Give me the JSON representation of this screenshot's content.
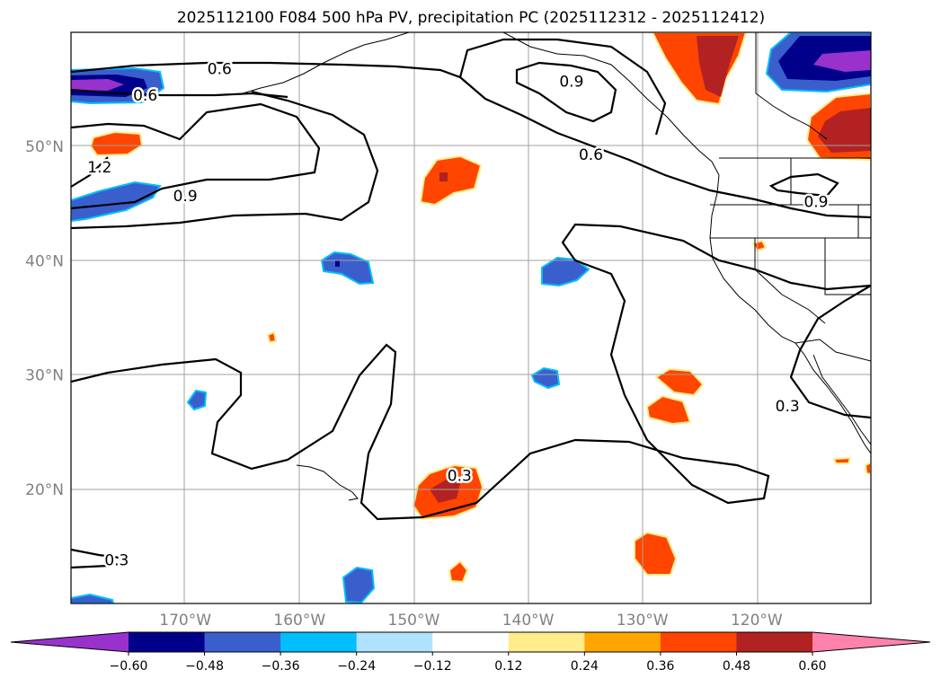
{
  "chart_data": {
    "type": "map",
    "title": "2025112100 F084 500 hPa PV, precipitation PC (2025112312 - 2025112412)",
    "map": {
      "lon_range": [
        -180,
        -110
      ],
      "lat_range": [
        10,
        60
      ],
      "gridlines": true,
      "x_tick_labels": [
        {
          "lon": -170,
          "label": "170°W"
        },
        {
          "lon": -160,
          "label": "160°W"
        },
        {
          "lon": -150,
          "label": "150°W"
        },
        {
          "lon": -140,
          "label": "140°W"
        },
        {
          "lon": -130,
          "label": "130°W"
        },
        {
          "lon": -120,
          "label": "120°W"
        }
      ],
      "y_tick_labels": [
        {
          "lat": 20,
          "label": "20°N"
        },
        {
          "lat": 30,
          "label": "30°N"
        },
        {
          "lat": 40,
          "label": "40°N"
        },
        {
          "lat": 50,
          "label": "50°N"
        }
      ]
    },
    "pv_contour_labels": [
      {
        "text": "0.6",
        "lon": -167,
        "lat": 56.8
      },
      {
        "text": "0.6",
        "lon": -173.5,
        "lat": 54.5
      },
      {
        "text": "0.9",
        "lon": -136.2,
        "lat": 55.7
      },
      {
        "text": "0.6",
        "lon": -134.5,
        "lat": 49.3
      },
      {
        "text": "1.2",
        "lon": -177.5,
        "lat": 48.2
      },
      {
        "text": "0.9",
        "lon": -170,
        "lat": 45.7
      },
      {
        "text": "0.9",
        "lon": -114.8,
        "lat": 45.2
      },
      {
        "text": "0.3",
        "lon": -146,
        "lat": 21.2
      },
      {
        "text": "0.3",
        "lon": -117.3,
        "lat": 27.3
      },
      {
        "text": "0.3",
        "lon": -176,
        "lat": 13.8
      }
    ],
    "precip_pc_regions": [
      {
        "name": "negative-north-pacific-west",
        "lon": -173.5,
        "lat": 55.5,
        "value": -0.6
      },
      {
        "name": "negative-west-midlat",
        "lon": -175,
        "lat": 45,
        "value": -0.36
      },
      {
        "name": "positive-west-midlat",
        "lon": -177.5,
        "lat": 50.1,
        "value": 0.36
      },
      {
        "name": "positive-gulf-alaska",
        "lon": -125,
        "lat": 57,
        "value": 0.48
      },
      {
        "name": "negative-canada-north",
        "lon": -115,
        "lat": 56,
        "value": -0.6
      },
      {
        "name": "positive-canada-south",
        "lon": -113,
        "lat": 51,
        "value": 0.48
      },
      {
        "name": "positive-central-north",
        "lon": -147.5,
        "lat": 47,
        "value": 0.36
      },
      {
        "name": "negative-central",
        "lon": -156.5,
        "lat": 39.5,
        "value": -0.36
      },
      {
        "name": "negative-east-central",
        "lon": -138.5,
        "lat": 39,
        "value": -0.36
      },
      {
        "name": "positive-subtropical",
        "lon": -148,
        "lat": 20,
        "value": 0.48
      },
      {
        "name": "positive-east-subtropical-1",
        "lon": -126.5,
        "lat": 29.5,
        "value": 0.36
      },
      {
        "name": "positive-east-subtropical-2",
        "lon": -128.7,
        "lat": 27.3,
        "value": 0.36
      },
      {
        "name": "negative-west-subtropical",
        "lon": -169,
        "lat": 28,
        "value": -0.36
      },
      {
        "name": "negative-east-subtropical",
        "lon": -138.5,
        "lat": 29.8,
        "value": -0.24
      },
      {
        "name": "negative-south-central",
        "lon": -155.5,
        "lat": 11.5,
        "value": -0.36
      },
      {
        "name": "positive-south-central",
        "lon": -146,
        "lat": 12.7,
        "value": 0.36
      },
      {
        "name": "positive-southeast",
        "lon": -129,
        "lat": 14.5,
        "value": 0.36
      },
      {
        "name": "positive-small-west",
        "lon": -162.1,
        "lat": 33.2,
        "value": 0.36
      },
      {
        "name": "positive-small-california",
        "lon": -120,
        "lat": 41.3,
        "value": 0.36
      }
    ],
    "colorbar": {
      "extend": "both",
      "colors": [
        "#9932CC",
        "#00008B",
        "#3A5FCD",
        "#00BFFF",
        "#B0E2FF",
        "#FFFFFF",
        "#FFEC8B",
        "#FFA500",
        "#FF4500",
        "#B22222",
        "#FF82AB"
      ],
      "ticks": [
        {
          "value": -0.6,
          "label": "−0.60"
        },
        {
          "value": -0.48,
          "label": "−0.48"
        },
        {
          "value": -0.36,
          "label": "−0.36"
        },
        {
          "value": -0.24,
          "label": "−0.24"
        },
        {
          "value": -0.12,
          "label": "−0.12"
        },
        {
          "value": 0.12,
          "label": "0.12"
        },
        {
          "value": 0.24,
          "label": "0.24"
        },
        {
          "value": 0.36,
          "label": "0.36"
        },
        {
          "value": 0.48,
          "label": "0.48"
        },
        {
          "value": 0.6,
          "label": "0.60"
        }
      ]
    }
  }
}
